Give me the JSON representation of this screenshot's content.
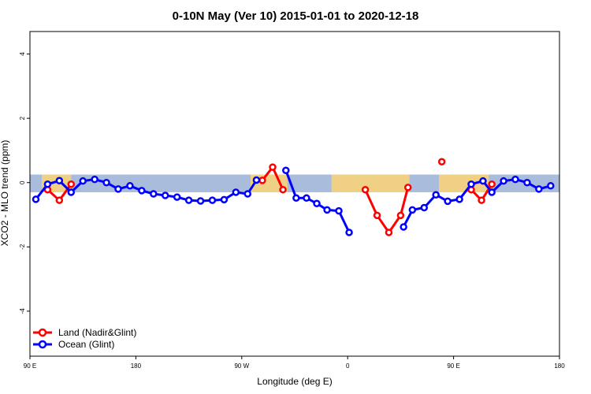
{
  "chart_data": {
    "type": "line",
    "title": "0-10N May (Ver 10)   2015-01-01 to 2020-12-18",
    "xlabel": "Longitude (deg E)",
    "ylabel": "XCO2 - MLO trend (ppm)",
    "xlim": [
      0,
      360
    ],
    "ylim": [
      -5.4,
      4.7
    ],
    "x_ticks": [
      {
        "pos": 0,
        "label": "90 E"
      },
      {
        "pos": 72,
        "label": "180"
      },
      {
        "pos": 144,
        "label": "90 W"
      },
      {
        "pos": 216,
        "label": "0"
      },
      {
        "pos": 288,
        "label": "90 E"
      },
      {
        "pos": 360,
        "label": "180"
      }
    ],
    "y_ticks": [
      {
        "value": -4,
        "label": "-4"
      },
      {
        "value": -2,
        "label": "-2"
      },
      {
        "value": 0,
        "label": "0"
      },
      {
        "value": 2,
        "label": "2"
      },
      {
        "value": 4,
        "label": "4"
      }
    ],
    "band": {
      "ymin": -0.3,
      "ymax": 0.25,
      "color": "#a9bcdb",
      "land_color": "#f6d27a"
    },
    "land_segments": [
      [
        8,
        28
      ],
      [
        150,
        175
      ],
      [
        205,
        258
      ],
      [
        278,
        312
      ]
    ],
    "legend_position": "bottom-left",
    "series": [
      {
        "name": "Land (Nadir&Glint)",
        "color": "#ff0000",
        "segments": [
          [
            [
              12,
              -0.22
            ],
            [
              20,
              -0.55
            ],
            [
              28,
              -0.05
            ]
          ],
          [
            [
              158,
              0.07
            ],
            [
              165,
              0.48
            ],
            [
              172,
              -0.22
            ]
          ],
          [
            [
              228,
              -0.22
            ],
            [
              236,
              -1.02
            ],
            [
              244,
              -1.55
            ],
            [
              252,
              -1.02
            ],
            [
              257,
              -0.15
            ]
          ],
          [
            [
              280,
              0.65
            ]
          ],
          [
            [
              300,
              -0.22
            ],
            [
              307,
              -0.55
            ],
            [
              314,
              -0.05
            ]
          ]
        ]
      },
      {
        "name": "Ocean (Glint)",
        "color": "#0000ff",
        "segments": [
          [
            [
              4,
              -0.52
            ],
            [
              12,
              -0.05
            ],
            [
              20,
              0.06
            ],
            [
              28,
              -0.3
            ],
            [
              36,
              0.05
            ],
            [
              44,
              0.1
            ],
            [
              52,
              0.0
            ],
            [
              60,
              -0.2
            ],
            [
              68,
              -0.1
            ],
            [
              76,
              -0.25
            ],
            [
              84,
              -0.35
            ],
            [
              92,
              -0.4
            ],
            [
              100,
              -0.45
            ],
            [
              108,
              -0.55
            ],
            [
              116,
              -0.57
            ],
            [
              124,
              -0.55
            ],
            [
              132,
              -0.53
            ],
            [
              140,
              -0.3
            ],
            [
              148,
              -0.35
            ],
            [
              154,
              0.08
            ]
          ],
          [
            [
              174,
              0.38
            ],
            [
              181,
              -0.48
            ],
            [
              188,
              -0.48
            ],
            [
              195,
              -0.65
            ],
            [
              202,
              -0.85
            ],
            [
              210,
              -0.88
            ],
            [
              217,
              -1.55
            ]
          ],
          [
            [
              254,
              -1.38
            ],
            [
              260,
              -0.85
            ],
            [
              268,
              -0.78
            ],
            [
              276,
              -0.38
            ],
            [
              284,
              -0.58
            ],
            [
              292,
              -0.52
            ],
            [
              300,
              -0.05
            ],
            [
              308,
              0.05
            ],
            [
              314,
              -0.3
            ],
            [
              322,
              0.05
            ],
            [
              330,
              0.1
            ],
            [
              338,
              0.0
            ],
            [
              346,
              -0.2
            ],
            [
              354,
              -0.1
            ]
          ]
        ]
      }
    ]
  }
}
